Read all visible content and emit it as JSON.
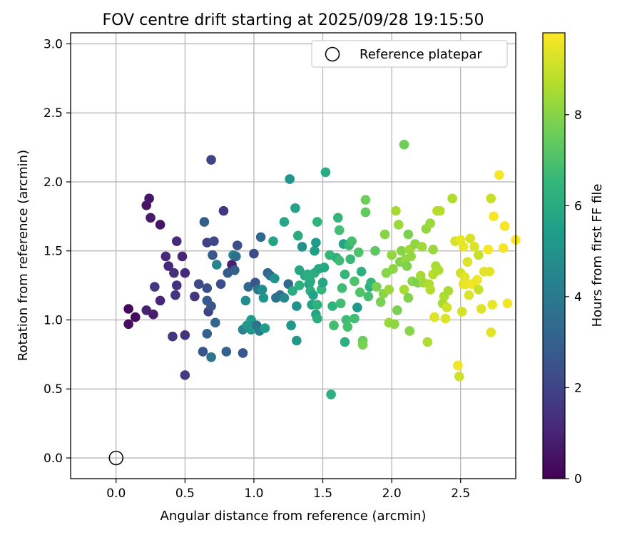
{
  "chart_data": {
    "type": "scatter",
    "title": "FOV centre drift starting at 2025/09/28 19:15:50",
    "xlabel": "Angular distance from reference (arcmin)",
    "ylabel": "Rotation from reference (arcmin)",
    "colorbar_label": "Hours from first FF file",
    "colormap": "viridis",
    "xlim": [
      -0.33,
      2.9
    ],
    "ylim": [
      -0.15,
      3.08
    ],
    "clim": [
      0,
      9.8
    ],
    "x_ticks": [
      "0.0",
      "0.5",
      "1.0",
      "1.5",
      "2.0",
      "2.5"
    ],
    "y_ticks": [
      "0.0",
      "0.5",
      "1.0",
      "1.5",
      "2.0",
      "2.5",
      "3.0"
    ],
    "colorbar_ticks": [
      "0",
      "2",
      "4",
      "6",
      "8"
    ],
    "grid": true,
    "legend": {
      "position": "top-right",
      "label": "Reference platepar"
    },
    "reference_point": {
      "x": 0.0,
      "y": 0.0,
      "marker": "open-circle"
    },
    "points": [
      [
        0.09,
        1.08,
        0.2
      ],
      [
        0.14,
        1.02,
        0.3
      ],
      [
        0.09,
        0.97,
        0.4
      ],
      [
        0.22,
        1.83,
        0.5
      ],
      [
        0.24,
        1.88,
        0.6
      ],
      [
        0.25,
        1.74,
        0.7
      ],
      [
        0.32,
        1.69,
        0.6
      ],
      [
        0.22,
        1.07,
        0.9
      ],
      [
        0.27,
        1.04,
        0.8
      ],
      [
        0.28,
        1.24,
        1.6
      ],
      [
        0.32,
        1.14,
        1.0
      ],
      [
        0.36,
        1.46,
        1.2
      ],
      [
        0.38,
        1.39,
        1.1
      ],
      [
        0.42,
        1.34,
        1.3
      ],
      [
        0.44,
        1.57,
        1.2
      ],
      [
        0.44,
        1.25,
        1.4
      ],
      [
        0.48,
        1.46,
        1.0
      ],
      [
        0.5,
        1.34,
        1.2
      ],
      [
        0.43,
        1.18,
        1.5
      ],
      [
        0.41,
        0.88,
        1.6
      ],
      [
        0.5,
        0.89,
        1.4
      ],
      [
        0.5,
        0.6,
        1.7
      ],
      [
        0.57,
        1.17,
        1.6
      ],
      [
        0.6,
        1.26,
        2.2
      ],
      [
        0.63,
        0.77,
        2.6
      ],
      [
        0.64,
        1.71,
        2.9
      ],
      [
        0.66,
        1.56,
        1.9
      ],
      [
        0.66,
        1.23,
        2.4
      ],
      [
        0.66,
        1.14,
        2.8
      ],
      [
        0.66,
        0.9,
        3.1
      ],
      [
        0.67,
        1.06,
        2.0
      ],
      [
        0.69,
        2.16,
        1.9
      ],
      [
        0.69,
        1.1,
        2.6
      ],
      [
        0.69,
        0.73,
        3.8
      ],
      [
        0.7,
        1.47,
        2.7
      ],
      [
        0.71,
        1.57,
        2.1
      ],
      [
        0.72,
        0.98,
        3.2
      ],
      [
        0.73,
        1.4,
        4.5
      ],
      [
        0.76,
        1.26,
        2.3
      ],
      [
        0.78,
        1.79,
        1.5
      ],
      [
        0.8,
        0.77,
        3.1
      ],
      [
        0.81,
        1.34,
        2.8
      ],
      [
        0.84,
        1.4,
        0.9
      ],
      [
        0.85,
        1.47,
        4.6
      ],
      [
        0.87,
        1.46,
        3.5
      ],
      [
        0.86,
        1.36,
        2.9
      ],
      [
        0.88,
        1.54,
        2.4
      ],
      [
        0.92,
        0.76,
        2.7
      ],
      [
        0.92,
        0.93,
        4.3
      ],
      [
        0.95,
        0.96,
        5.2
      ],
      [
        0.94,
        1.14,
        4.8
      ],
      [
        0.96,
        1.24,
        3.3
      ],
      [
        0.98,
        1.0,
        5.3
      ],
      [
        0.98,
        0.93,
        5.1
      ],
      [
        1.0,
        0.94,
        5.2
      ],
      [
        1.0,
        1.48,
        2.3
      ],
      [
        1.01,
        1.27,
        2.6
      ],
      [
        1.02,
        0.96,
        3.7
      ],
      [
        1.04,
        0.92,
        4.1
      ],
      [
        1.03,
        1.22,
        3.9
      ],
      [
        1.05,
        1.6,
        3.3
      ],
      [
        1.06,
        1.22,
        4.8
      ],
      [
        1.07,
        1.16,
        5.1
      ],
      [
        1.08,
        0.94,
        5.4
      ],
      [
        1.1,
        1.34,
        3.2
      ],
      [
        1.12,
        1.32,
        3.5
      ],
      [
        1.14,
        1.57,
        5.7
      ],
      [
        1.15,
        1.3,
        5.0
      ],
      [
        1.16,
        1.16,
        3.7
      ],
      [
        1.19,
        1.18,
        3.6
      ],
      [
        1.22,
        1.71,
        5.8
      ],
      [
        1.22,
        1.16,
        4.6
      ],
      [
        1.25,
        1.26,
        3.4
      ],
      [
        1.26,
        2.02,
        5.1
      ],
      [
        1.27,
        0.96,
        5.2
      ],
      [
        1.28,
        1.21,
        6.0
      ],
      [
        1.3,
        1.81,
        5.6
      ],
      [
        1.31,
        0.85,
        5.2
      ],
      [
        1.31,
        1.1,
        5.0
      ],
      [
        1.32,
        1.61,
        6.0
      ],
      [
        1.33,
        1.36,
        5.8
      ],
      [
        1.33,
        1.25,
        6.2
      ],
      [
        1.35,
        1.53,
        5.0
      ],
      [
        1.37,
        1.32,
        5.9
      ],
      [
        1.39,
        1.33,
        6.1
      ],
      [
        1.4,
        1.26,
        5.5
      ],
      [
        1.41,
        1.28,
        6.0
      ],
      [
        1.41,
        1.21,
        6.2
      ],
      [
        1.42,
        1.11,
        5.7
      ],
      [
        1.43,
        1.18,
        5.6
      ],
      [
        1.44,
        1.34,
        6.1
      ],
      [
        1.44,
        1.5,
        5.5
      ],
      [
        1.45,
        1.56,
        5.3
      ],
      [
        1.45,
        1.04,
        5.7
      ],
      [
        1.46,
        1.71,
        6.3
      ],
      [
        1.46,
        1.01,
        6.1
      ],
      [
        1.46,
        1.11,
        6.3
      ],
      [
        1.47,
        1.37,
        5.9
      ],
      [
        1.49,
        1.22,
        6.5
      ],
      [
        1.5,
        1.27,
        5.8
      ],
      [
        1.51,
        1.38,
        5.9
      ],
      [
        1.52,
        2.07,
        6.0
      ],
      [
        1.55,
        1.47,
        6.5
      ],
      [
        1.56,
        0.46,
        6.2
      ],
      [
        1.57,
        1.1,
        6.3
      ],
      [
        1.58,
        0.96,
        6.8
      ],
      [
        1.6,
        1.45,
        6.2
      ],
      [
        1.61,
        1.74,
        6.4
      ],
      [
        1.62,
        1.65,
        6.8
      ],
      [
        1.62,
        1.43,
        6.7
      ],
      [
        1.63,
        1.12,
        6.8
      ],
      [
        1.64,
        1.23,
        6.7
      ],
      [
        1.65,
        1.55,
        5.6
      ],
      [
        1.66,
        0.84,
        6.2
      ],
      [
        1.66,
        1.33,
        6.5
      ],
      [
        1.67,
        1.0,
        6.7
      ],
      [
        1.68,
        0.95,
        6.9
      ],
      [
        1.69,
        1.54,
        6.6
      ],
      [
        1.7,
        1.44,
        6.6
      ],
      [
        1.71,
        1.57,
        6.8
      ],
      [
        1.73,
        1.01,
        6.8
      ],
      [
        1.73,
        1.28,
        7.0
      ],
      [
        1.75,
        1.09,
        5.2
      ],
      [
        1.76,
        1.49,
        7.0
      ],
      [
        1.77,
        1.2,
        7.1
      ],
      [
        1.78,
        1.35,
        6.2
      ],
      [
        1.79,
        0.85,
        7.5
      ],
      [
        1.79,
        0.82,
        7.8
      ],
      [
        1.81,
        1.87,
        7.6
      ],
      [
        1.81,
        1.78,
        7.4
      ],
      [
        1.83,
        1.17,
        6.9
      ],
      [
        1.84,
        1.24,
        6.2
      ],
      [
        1.85,
        1.27,
        6.4
      ],
      [
        1.88,
        1.5,
        7.3
      ],
      [
        1.89,
        1.24,
        7.8
      ],
      [
        1.92,
        1.13,
        7.8
      ],
      [
        1.94,
        1.19,
        8.0
      ],
      [
        1.95,
        1.62,
        8.0
      ],
      [
        1.96,
        1.34,
        8.0
      ],
      [
        1.98,
        0.98,
        8.3
      ],
      [
        1.98,
        1.22,
        8.3
      ],
      [
        2.0,
        1.47,
        8.2
      ],
      [
        2.01,
        1.37,
        8.1
      ],
      [
        2.02,
        0.97,
        8.1
      ],
      [
        2.03,
        1.79,
        8.5
      ],
      [
        2.04,
        1.07,
        7.8
      ],
      [
        2.05,
        1.69,
        8.3
      ],
      [
        2.06,
        1.42,
        7.9
      ],
      [
        2.07,
        1.5,
        8.0
      ],
      [
        2.09,
        2.27,
        7.6
      ],
      [
        2.09,
        1.22,
        8.5
      ],
      [
        2.1,
        1.44,
        8.2
      ],
      [
        2.11,
        1.39,
        7.9
      ],
      [
        2.12,
        1.62,
        7.8
      ],
      [
        2.12,
        1.16,
        7.9
      ],
      [
        2.13,
        0.92,
        8.0
      ],
      [
        2.13,
        1.51,
        8.4
      ],
      [
        2.14,
        1.46,
        8.2
      ],
      [
        2.15,
        1.28,
        8.0
      ],
      [
        2.17,
        1.55,
        8.1
      ],
      [
        2.19,
        1.27,
        7.8
      ],
      [
        2.21,
        1.32,
        8.5
      ],
      [
        2.22,
        1.53,
        8.4
      ],
      [
        2.23,
        1.27,
        8.4
      ],
      [
        2.25,
        1.66,
        8.2
      ],
      [
        2.26,
        0.84,
        8.6
      ],
      [
        2.27,
        1.26,
        8.6
      ],
      [
        2.28,
        1.7,
        8.3
      ],
      [
        2.28,
        1.22,
        8.7
      ],
      [
        2.3,
        1.51,
        8.3
      ],
      [
        2.3,
        1.33,
        8.7
      ],
      [
        2.31,
        1.02,
        9.3
      ],
      [
        2.32,
        1.39,
        8.5
      ],
      [
        2.33,
        1.79,
        8.7
      ],
      [
        2.34,
        1.36,
        8.6
      ],
      [
        2.35,
        1.79,
        8.7
      ],
      [
        2.37,
        1.12,
        8.5
      ],
      [
        2.38,
        1.17,
        8.6
      ],
      [
        2.39,
        1.01,
        9.3
      ],
      [
        2.4,
        1.09,
        9.1
      ],
      [
        2.41,
        1.21,
        8.5
      ],
      [
        2.44,
        1.88,
        8.6
      ],
      [
        2.46,
        1.57,
        9.2
      ],
      [
        2.48,
        0.67,
        9.6
      ],
      [
        2.49,
        0.59,
        9.1
      ],
      [
        2.5,
        1.34,
        9.1
      ],
      [
        2.5,
        1.58,
        9.5
      ],
      [
        2.51,
        1.06,
        9.2
      ],
      [
        2.52,
        1.53,
        9.5
      ],
      [
        2.52,
        1.26,
        9.4
      ],
      [
        2.53,
        1.31,
        9.4
      ],
      [
        2.54,
        1.26,
        9.5
      ],
      [
        2.55,
        1.42,
        9.3
      ],
      [
        2.56,
        1.18,
        9.3
      ],
      [
        2.57,
        1.59,
        9.2
      ],
      [
        2.58,
        1.26,
        9.6
      ],
      [
        2.6,
        1.53,
        9.3
      ],
      [
        2.62,
        1.29,
        9.6
      ],
      [
        2.63,
        1.22,
        9.0
      ],
      [
        2.63,
        1.47,
        9.0
      ],
      [
        2.65,
        1.08,
        9.3
      ],
      [
        2.67,
        1.35,
        9.4
      ],
      [
        2.7,
        1.51,
        9.7
      ],
      [
        2.71,
        1.35,
        9.4
      ],
      [
        2.72,
        1.88,
        9.0
      ],
      [
        2.72,
        0.91,
        9.4
      ],
      [
        2.73,
        1.11,
        9.5
      ],
      [
        2.74,
        1.75,
        9.7
      ],
      [
        2.78,
        2.05,
        9.7
      ],
      [
        2.81,
        1.52,
        9.7
      ],
      [
        2.82,
        1.68,
        9.7
      ],
      [
        2.84,
        1.12,
        9.6
      ],
      [
        2.9,
        1.58,
        9.8
      ]
    ]
  }
}
